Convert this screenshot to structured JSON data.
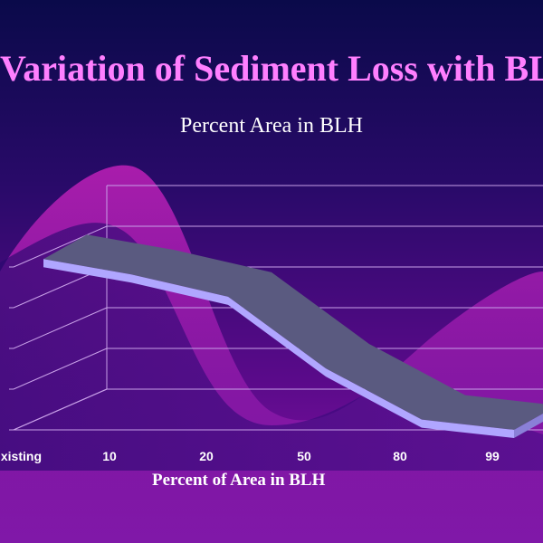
{
  "slide": {
    "title": "Variation of Sediment Loss with BLH",
    "subtitle": "Percent Area in BLH"
  },
  "colors": {
    "background_top": "#0a0a4a",
    "background_bottom": "#8a14a8",
    "title": "#ff7fff",
    "ribbon_top": "#5a5a80",
    "ribbon_front": "#b0a6ff",
    "gridlines": "#c8a0e8"
  },
  "chart_data": {
    "type": "line",
    "style": "3d-ribbon",
    "categories": [
      "Existing",
      "10",
      "20",
      "50",
      "80",
      "99"
    ],
    "visible_tick_labels": [
      "xisting",
      "10",
      "20",
      "50",
      "80",
      "99"
    ],
    "values": [
      100,
      91,
      78,
      36,
      6,
      0
    ],
    "xlabel": "Percent of Area in BLH",
    "ylabel": "",
    "ylim": [
      0,
      115
    ],
    "grid": true,
    "legend": "none",
    "y_tick_labels_visible": false
  }
}
